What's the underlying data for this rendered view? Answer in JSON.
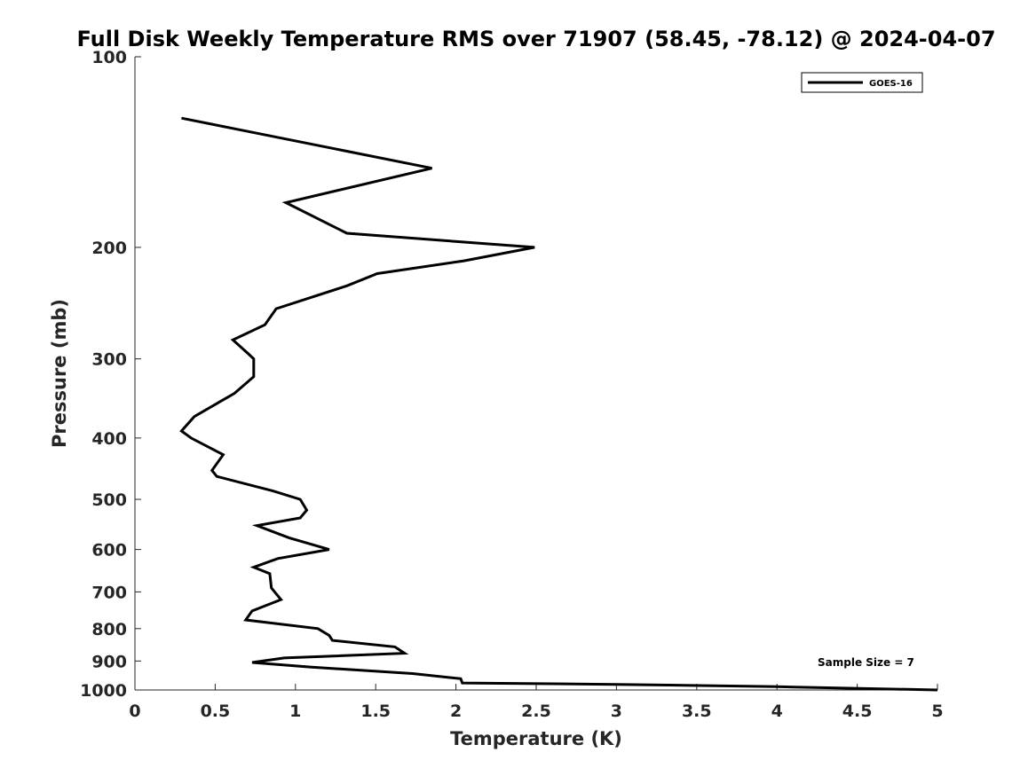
{
  "chart_data": {
    "type": "line",
    "title": "Full Disk Weekly Temperature RMS over 71907 (58.45, -78.12) @ 2024-04-07",
    "xlabel": "Temperature (K)",
    "ylabel": "Pressure (mb)",
    "xlim": [
      0,
      5
    ],
    "ylim": [
      100,
      1000
    ],
    "y_scale": "log",
    "y_reversed": true,
    "x_ticks": [
      "0",
      "0.5",
      "1",
      "1.5",
      "2",
      "2.5",
      "3",
      "3.5",
      "4",
      "4.5",
      "5"
    ],
    "y_ticks": [
      "100",
      "200",
      "300",
      "400",
      "500",
      "600",
      "700",
      "800",
      "900",
      "1000"
    ],
    "grid": false,
    "legend": {
      "position": "top-right",
      "entries": [
        "GOES-16"
      ]
    },
    "annotation": "Sample Size = 7",
    "series": [
      {
        "name": "GOES-16",
        "color": "#000000",
        "points": [
          [
            0.29,
            125
          ],
          [
            1.85,
            150
          ],
          [
            0.94,
            170
          ],
          [
            1.32,
            190
          ],
          [
            2.49,
            200
          ],
          [
            2.05,
            210
          ],
          [
            1.51,
            220
          ],
          [
            1.32,
            230
          ],
          [
            0.88,
            250
          ],
          [
            0.81,
            265
          ],
          [
            0.61,
            280
          ],
          [
            0.71,
            295
          ],
          [
            0.74,
            300
          ],
          [
            0.74,
            320
          ],
          [
            0.62,
            340
          ],
          [
            0.37,
            370
          ],
          [
            0.29,
            390
          ],
          [
            0.35,
            400
          ],
          [
            0.55,
            425
          ],
          [
            0.48,
            450
          ],
          [
            0.51,
            460
          ],
          [
            0.86,
            485
          ],
          [
            1.03,
            500
          ],
          [
            1.07,
            520
          ],
          [
            1.03,
            535
          ],
          [
            0.76,
            550
          ],
          [
            0.96,
            575
          ],
          [
            1.21,
            600
          ],
          [
            0.89,
            620
          ],
          [
            0.74,
            640
          ],
          [
            0.84,
            655
          ],
          [
            0.85,
            690
          ],
          [
            0.91,
            720
          ],
          [
            0.73,
            750
          ],
          [
            0.69,
            775
          ],
          [
            1.14,
            800
          ],
          [
            1.21,
            820
          ],
          [
            1.23,
            835
          ],
          [
            1.62,
            855
          ],
          [
            1.68,
            875
          ],
          [
            0.93,
            890
          ],
          [
            0.73,
            905
          ],
          [
            1.09,
            920
          ],
          [
            1.73,
            942
          ],
          [
            2.03,
            960
          ],
          [
            2.04,
            975
          ],
          [
            3.0,
            980
          ],
          [
            4.0,
            988
          ],
          [
            5.0,
            1000
          ]
        ]
      }
    ]
  }
}
